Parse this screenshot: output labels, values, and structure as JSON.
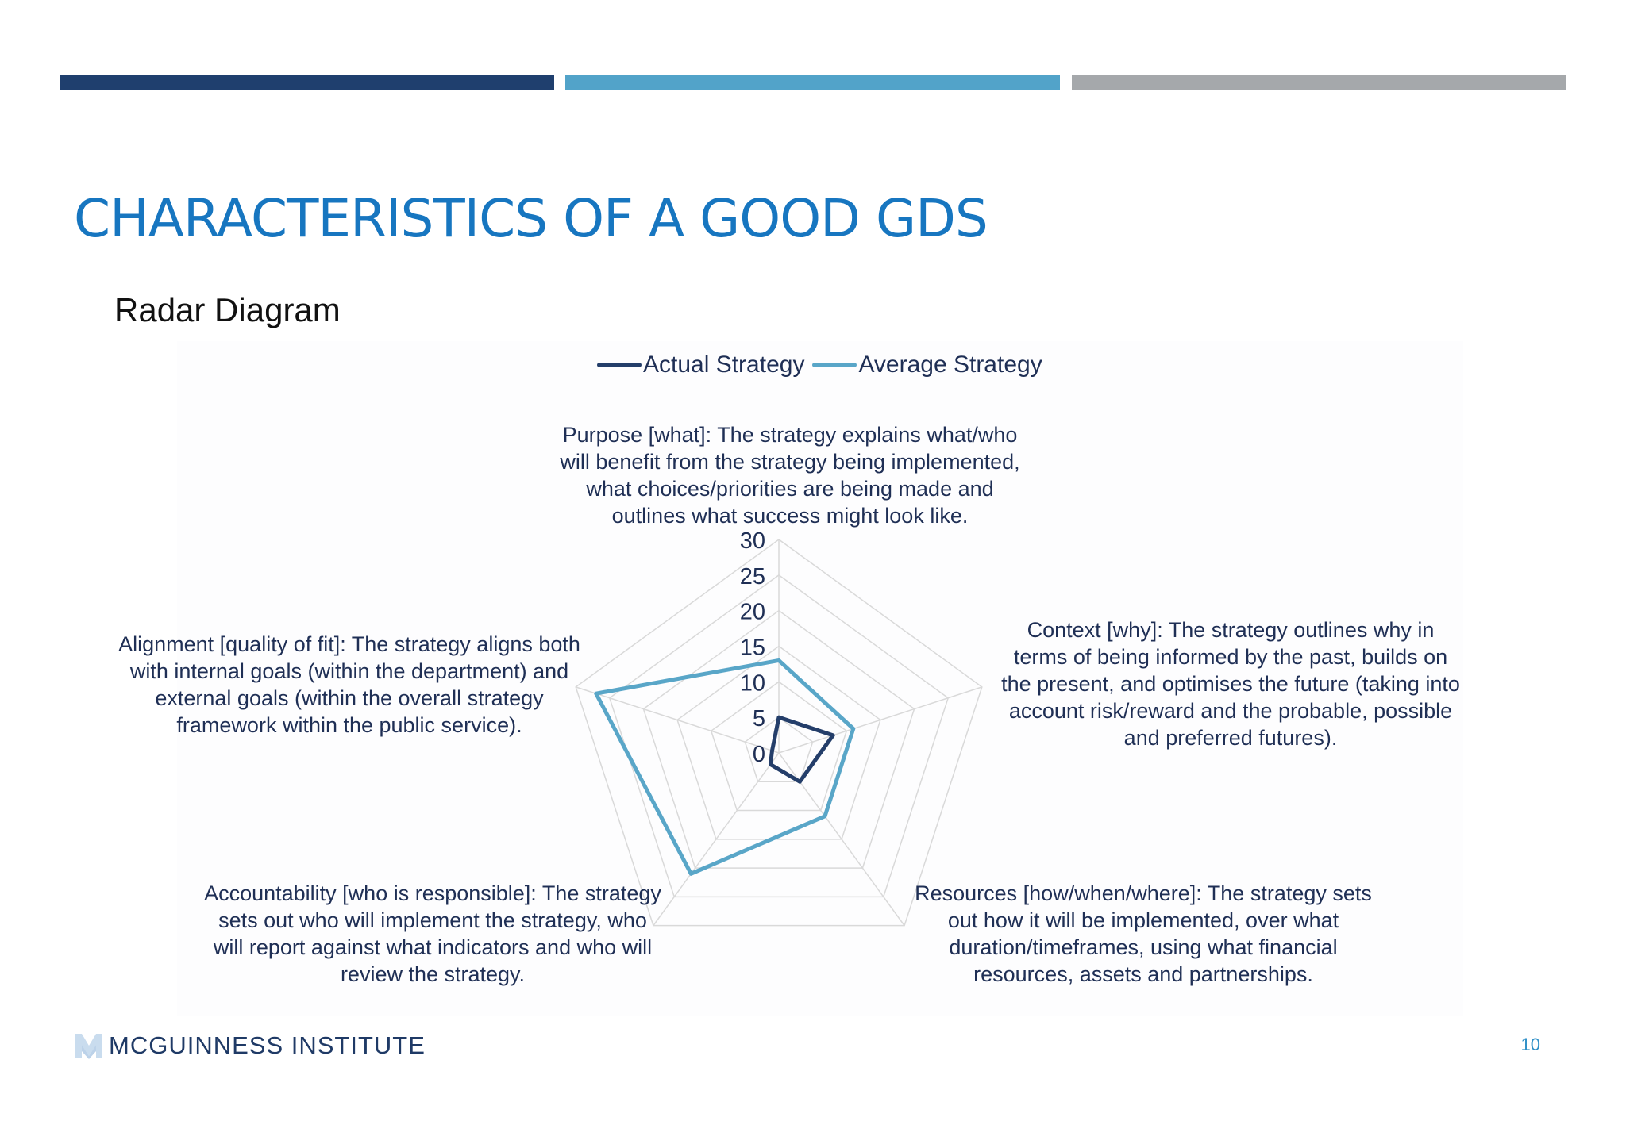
{
  "colors": {
    "bar_dark": "#1f3f6e",
    "bar_mid": "#52a3c9",
    "bar_grey": "#a5a8ab",
    "title": "#1776c0",
    "actual": "#243e6a",
    "average": "#59a6c8",
    "grid": "#d9d9d9"
  },
  "slide": {
    "title": "CHARACTERISTICS OF A GOOD GDS",
    "subtitle": "Radar Diagram",
    "page_number": "10"
  },
  "footer": {
    "logo_icon": "m-logo-icon",
    "logo_text": "MCGUINNESS INSTITUTE"
  },
  "chart_data": {
    "type": "radar",
    "axes": [
      "Purpose [what]: The strategy explains what/who will benefit from the strategy being implemented, what choices/priorities are being made and outlines what success might look like.",
      "Context [why]: The strategy outlines why in terms of being informed by the past, builds on the present, and optimises the future (taking into account risk/reward and the probable, possible and preferred futures).",
      "Resources [how/when/where]: The strategy sets out how it will be implemented, over what duration/timeframes, using what financial resources, assets and partnerships.",
      "Accountability [who is responsible]: The strategy sets out who will implement the strategy, who will report against what indicators and who will review the strategy.",
      "Alignment [quality of fit]: The strategy aligns both with internal goals (within the department) and external goals (within the overall strategy framework within the public service)."
    ],
    "axis_label_lines": [
      [
        "Purpose [what]: The strategy explains what/who",
        "will benefit from the strategy being implemented,",
        "what choices/priorities are being made and",
        "outlines what success might look like."
      ],
      [
        "Context [why]: The strategy outlines why in",
        "terms of being informed by the past, builds on",
        "the present, and optimises the future (taking into",
        "account risk/reward and the probable, possible",
        "and preferred futures)."
      ],
      [
        "Resources [how/when/where]: The strategy sets",
        "out how it will be implemented, over what",
        "duration/timeframes, using what financial",
        "resources, assets and partnerships."
      ],
      [
        "Accountability [who is responsible]: The strategy",
        "sets out who will implement the strategy, who",
        "will report against what indicators and who will",
        "review the strategy."
      ],
      [
        "Alignment [quality of fit]: The strategy aligns both",
        "with internal goals (within the department) and",
        "external goals (within the overall strategy",
        "framework within the public service)."
      ]
    ],
    "rlim": [
      0,
      30
    ],
    "ticks": [
      0,
      5,
      10,
      15,
      20,
      25,
      30
    ],
    "tick_labels": [
      "0",
      "5",
      "10",
      "15",
      "20",
      "25",
      "30"
    ],
    "grid": true,
    "legend_position": "top",
    "series": [
      {
        "name": "Actual Strategy",
        "values": [
          5,
          8,
          5,
          2,
          1
        ]
      },
      {
        "name": "Average Strategy",
        "values": [
          13,
          11,
          11,
          21,
          27
        ]
      }
    ]
  }
}
